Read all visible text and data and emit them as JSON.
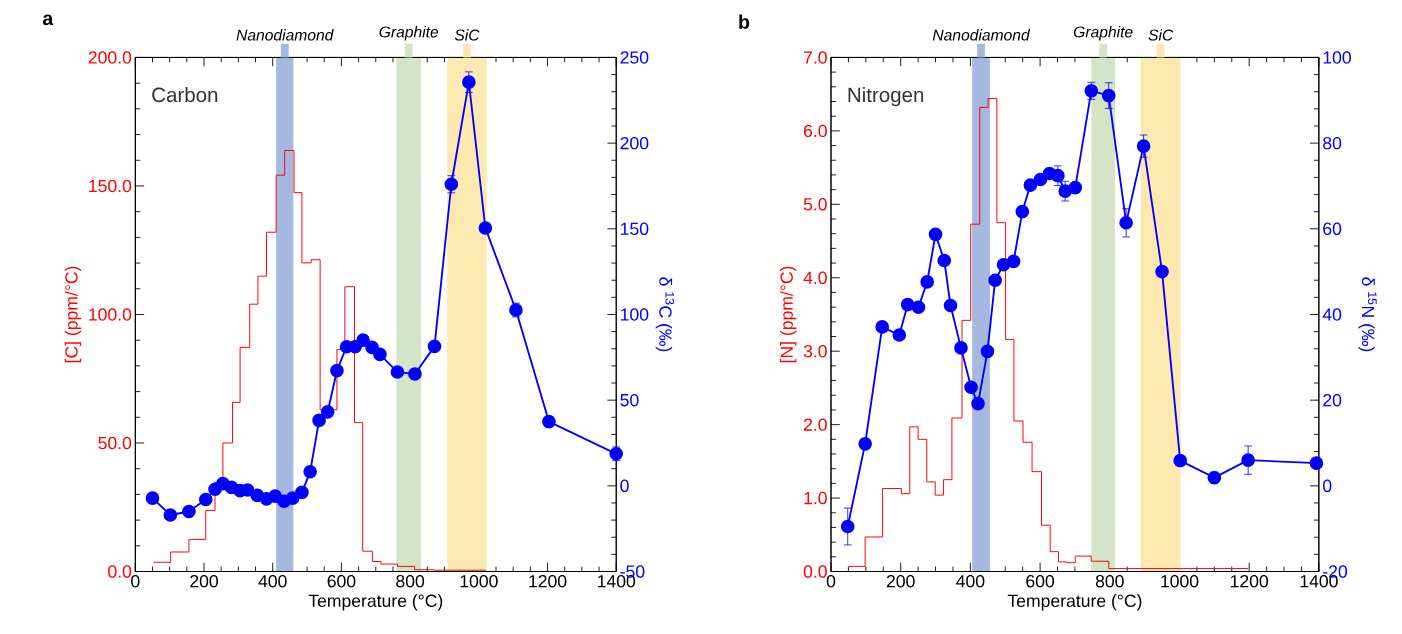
{
  "chart_data": [
    {
      "type": "line",
      "xlabel": "Temperature (°C)",
      "ylabel": "[C] (ppm/°C)",
      "y2label": "δ $^{13}$C (‰)",
      "annotations": [
        "a",
        "Carbon"
      ],
      "xlim": [
        0,
        1400
      ],
      "xticks": [
        0,
        200,
        400,
        600,
        800,
        1000,
        1200,
        1400
      ],
      "ylim": [
        0,
        200
      ],
      "yticks": [
        {
          "value": 0,
          "label": "0.0"
        },
        {
          "value": 50,
          "label": "50.0"
        },
        {
          "value": 100,
          "label": "100.0"
        },
        {
          "value": 150,
          "label": "150.0"
        },
        {
          "value": 200,
          "label": "200.0"
        }
      ],
      "y2lim": [
        -50,
        250
      ],
      "y2ticks": [
        -50,
        0,
        50,
        100,
        150,
        200,
        250
      ],
      "bands": [
        {
          "axis": "x",
          "from": 410,
          "to": 460,
          "label": "Nanodiamond",
          "color": "#a4b8e0"
        },
        {
          "axis": "x",
          "from": 760,
          "to": 832,
          "label": "Graphite",
          "color": "#d3e5c6"
        },
        {
          "axis": "x",
          "from": 908,
          "to": 1023,
          "label": "SiC",
          "color": "#fde9b0"
        }
      ],
      "series": [
        {
          "type": "step",
          "color": "#ff0000",
          "x": [
            53,
            103,
            156,
            205,
            232,
            255,
            283,
            305,
            333,
            357,
            382,
            410,
            435,
            462,
            485,
            512,
            538,
            587,
            610,
            638,
            662,
            690,
            715,
            763,
            813,
            870,
            1020
          ],
          "values": [
            3.6,
            7.6,
            12.5,
            23.7,
            34.6,
            50,
            65.8,
            87.2,
            104,
            114.9,
            132,
            154.2,
            163.8,
            147.4,
            120.1,
            121.3,
            62.9,
            86.4,
            110.8,
            57.9,
            7.9,
            3.9,
            2.9,
            2.0,
            0.7,
            0.5,
            0.5
          ]
        },
        {
          "type": "line",
          "axis": "y2",
          "marker": "circle",
          "color": "#0000ff",
          "x": [
            50,
            102,
            156,
            205,
            232,
            255,
            280,
            305,
            327,
            355,
            382,
            407,
            433,
            458,
            485,
            509,
            535,
            560,
            587,
            615,
            640,
            663,
            689,
            712,
            763,
            814,
            871,
            920,
            971,
            1019,
            1108,
            1204,
            1400
          ],
          "values": [
            -7.2,
            -17,
            -15,
            -8,
            -2,
            1.3,
            -0.9,
            -2.8,
            -2.4,
            -5.6,
            -7.6,
            -6,
            -9,
            -7.2,
            -3.8,
            8.2,
            38.2,
            43.2,
            67.2,
            81.2,
            81.2,
            85,
            80.8,
            76.7,
            66.4,
            65.3,
            81.4,
            176,
            235.6,
            150.5,
            102.6,
            37.5,
            18.7
          ],
          "errors": [
            null,
            null,
            null,
            null,
            null,
            null,
            null,
            null,
            null,
            null,
            null,
            null,
            null,
            null,
            null,
            null,
            null,
            null,
            null,
            null,
            null,
            null,
            null,
            null,
            null,
            null,
            null,
            5,
            6,
            null,
            4,
            null,
            4
          ]
        }
      ]
    },
    {
      "type": "line",
      "xlabel": "Temperature (°C)",
      "ylabel": "[N] (ppm/°C)",
      "y2label": "δ $^{15}$N (‰)",
      "annotations": [
        "b",
        "Nitrogen"
      ],
      "xlim": [
        0,
        1400
      ],
      "xticks": [
        0,
        200,
        400,
        600,
        800,
        1000,
        1200,
        1400
      ],
      "ylim": [
        0,
        7
      ],
      "yticks": [
        {
          "value": 0,
          "label": "0.0"
        },
        {
          "value": 1,
          "label": "1.0"
        },
        {
          "value": 2,
          "label": "2.0"
        },
        {
          "value": 3,
          "label": "3.0"
        },
        {
          "value": 4,
          "label": "4.0"
        },
        {
          "value": 5,
          "label": "5.0"
        },
        {
          "value": 6,
          "label": "6.0"
        },
        {
          "value": 7,
          "label": "7.0"
        }
      ],
      "y2lim": [
        -20,
        100
      ],
      "y2ticks": [
        -20,
        0,
        20,
        40,
        60,
        80,
        100
      ],
      "bands": [
        {
          "axis": "x",
          "from": 405,
          "to": 456,
          "label": "Nanodiamond",
          "color": "#a4b8e0"
        },
        {
          "axis": "x",
          "from": 747,
          "to": 815,
          "label": "Graphite",
          "color": "#d3e5c6"
        },
        {
          "axis": "x",
          "from": 889,
          "to": 1003,
          "label": "SiC",
          "color": "#fde9b0"
        }
      ],
      "series": [
        {
          "type": "step",
          "color": "#ff0000",
          "x": [
            51,
            98,
            148,
            202,
            226,
            250,
            275,
            299,
            323,
            347,
            376,
            401,
            427,
            451,
            476,
            501,
            525,
            551,
            577,
            604,
            629,
            653,
            677,
            701,
            747,
            797,
            1197
          ],
          "values": [
            0.07,
            0.47,
            1.13,
            1.06,
            1.97,
            1.8,
            1.22,
            1.04,
            1.25,
            2.09,
            3.42,
            4.73,
            6.32,
            6.44,
            4.75,
            3.16,
            2.05,
            1.76,
            1.36,
            0.63,
            0.27,
            0.13,
            0.12,
            0.21,
            0.14,
            0.04,
            0.04
          ]
        },
        {
          "type": "line",
          "axis": "y2",
          "marker": "circle",
          "color": "#0000ff",
          "x": [
            48,
            98,
            147,
            196,
            220,
            251,
            276,
            300,
            325,
            343,
            373,
            402,
            422,
            449,
            471,
            495,
            524,
            549,
            572,
            601,
            627,
            651,
            672,
            701,
            747,
            797,
            847,
            897,
            950,
            1002,
            1100,
            1197,
            1393
          ],
          "values": [
            -9.5,
            9.8,
            37.1,
            35.2,
            42.3,
            41.7,
            47.6,
            58.7,
            52.6,
            42.1,
            32.2,
            23,
            19.2,
            31.4,
            48,
            51.6,
            52.4,
            64,
            70.2,
            71.5,
            72.9,
            72.4,
            68.8,
            69.6,
            92.2,
            91.1,
            61.4,
            79.3,
            50,
            5.9,
            1.9,
            6,
            5.3
          ],
          "errors": [
            4.3,
            null,
            null,
            null,
            null,
            null,
            null,
            null,
            null,
            null,
            null,
            null,
            null,
            null,
            null,
            null,
            null,
            null,
            null,
            null,
            null,
            2.3,
            2.3,
            null,
            2,
            3,
            3.3,
            2.6,
            null,
            null,
            1.3,
            3.3,
            null
          ]
        }
      ]
    }
  ]
}
